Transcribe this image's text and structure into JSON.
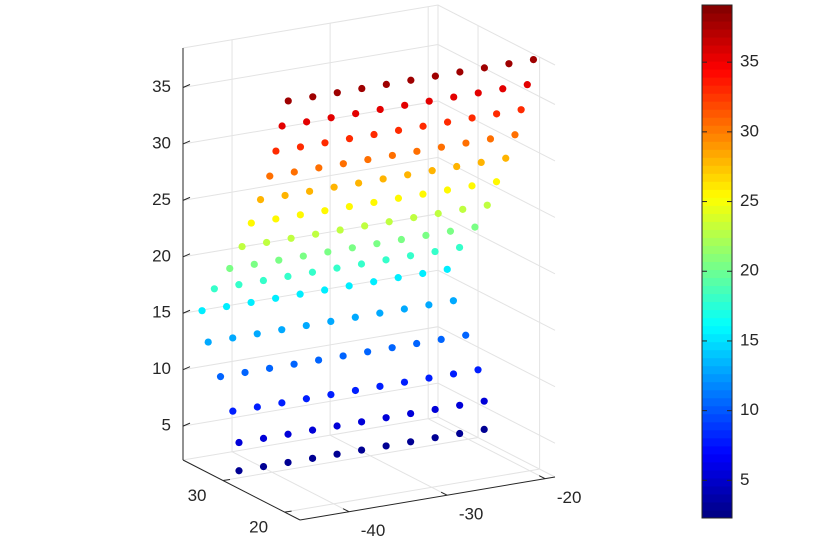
{
  "chart_data": {
    "type": "scatter3d",
    "colormap": "jet",
    "grid": true,
    "xlim": [
      -45,
      -19
    ],
    "ylim": [
      17.5,
      36.5
    ],
    "zlim": [
      2,
      38.5
    ],
    "xticks": [
      -40,
      -30,
      -20
    ],
    "yticks": [
      20,
      30
    ],
    "zticks": [
      5,
      10,
      15,
      20,
      25,
      30,
      35
    ],
    "clim": [
      2.3,
      39.1
    ],
    "cticks": [
      5,
      10,
      15,
      20,
      25,
      30,
      35
    ],
    "x": [
      -44,
      -41.5,
      -39,
      -36.5,
      -34,
      -31.5,
      -29,
      -26.5,
      -24,
      -21.5,
      -19,
      -44,
      -41.5,
      -39,
      -36.5,
      -34,
      -31.5,
      -29,
      -26.5,
      -24,
      -21.5,
      -19,
      -44,
      -41.5,
      -39,
      -36.5,
      -34,
      -31.5,
      -29,
      -26.5,
      -24,
      -21.5,
      -19,
      -44,
      -41.5,
      -39,
      -36.5,
      -34,
      -31.5,
      -29,
      -26.5,
      -24,
      -21.5,
      -19,
      -44,
      -41.5,
      -39,
      -36.5,
      -34,
      -31.5,
      -29,
      -26.5,
      -24,
      -21.5,
      -19,
      -44,
      -41.5,
      -39,
      -36.5,
      -34,
      -31.5,
      -29,
      -26.5,
      -24,
      -21.5,
      -19,
      -44,
      -41.5,
      -39,
      -36.5,
      -34,
      -31.5,
      -29,
      -26.5,
      -24,
      -21.5,
      -19,
      -44,
      -41.5,
      -39,
      -36.5,
      -34,
      -31.5,
      -29,
      -26.5,
      -24,
      -21.5,
      -19,
      -44,
      -41.5,
      -39,
      -36.5,
      -34,
      -31.5,
      -29,
      -26.5,
      -24,
      -21.5,
      -19,
      -44,
      -41.5,
      -39,
      -36.5,
      -34,
      -31.5,
      -29,
      -26.5,
      -24,
      -21.5,
      -19,
      -44,
      -41.5,
      -39,
      -36.5,
      -34,
      -31.5,
      -29,
      -26.5,
      -24,
      -21.5,
      -19,
      -44,
      -41.5,
      -39,
      -36.5,
      -34,
      -31.5,
      -29,
      -26.5,
      -24,
      -21.5,
      -19,
      -44,
      -41.5,
      -39,
      -36.5,
      -34,
      -31.5,
      -29,
      -26.5,
      -24,
      -21.5,
      -19,
      -44,
      -41.5,
      -39,
      -36.5,
      -34,
      -31.5,
      -29,
      -26.5,
      -24,
      -21.5,
      -19,
      -44,
      -41.5,
      -39,
      -36.5,
      -34,
      -31.5,
      -29,
      -26.5,
      -24,
      -21.5,
      -19
    ],
    "y": [
      29,
      29,
      29,
      29,
      29,
      29,
      29,
      29,
      29,
      29,
      29,
      29,
      29,
      29,
      29,
      29,
      29,
      29,
      29,
      29,
      29,
      29,
      30,
      30,
      30,
      30,
      30,
      30,
      30,
      30,
      30,
      30,
      30,
      32,
      32,
      32,
      32,
      32,
      32,
      32,
      32,
      32,
      32,
      32,
      34,
      34,
      34,
      34,
      34,
      34,
      34,
      34,
      34,
      34,
      34,
      35,
      35,
      35,
      35,
      35,
      35,
      35,
      35,
      35,
      35,
      35,
      33,
      33,
      33,
      33,
      33,
      33,
      33,
      33,
      33,
      33,
      33,
      30.5,
      30.5,
      30.5,
      30.5,
      30.5,
      30.5,
      30.5,
      30.5,
      30.5,
      30.5,
      30.5,
      28.5,
      28.5,
      28.5,
      28.5,
      28.5,
      28.5,
      28.5,
      28.5,
      28.5,
      28.5,
      28.5,
      27,
      27,
      27,
      27,
      27,
      27,
      27,
      27,
      27,
      27,
      27,
      25.5,
      25.5,
      25.5,
      25.5,
      25.5,
      25.5,
      25.5,
      25.5,
      25.5,
      25.5,
      25.5,
      24,
      24,
      24,
      24,
      24,
      24,
      24,
      24,
      24,
      24,
      24,
      23,
      23,
      23,
      23,
      23,
      23,
      23,
      23,
      23,
      23,
      23,
      22,
      22,
      22,
      22,
      22,
      22,
      22,
      22,
      22,
      22,
      22,
      21,
      21,
      21,
      21,
      21,
      21,
      21,
      21,
      21,
      21,
      21
    ],
    "z": [
      3,
      3,
      3,
      3,
      3,
      3,
      3,
      3,
      3,
      3,
      3,
      5.5,
      5.5,
      5.5,
      5.5,
      5.5,
      5.5,
      5.5,
      5.5,
      5.5,
      5.5,
      5.5,
      8,
      8,
      8,
      8,
      8,
      8,
      8,
      8,
      8,
      8,
      8,
      10.5,
      10.5,
      10.5,
      10.5,
      10.5,
      10.5,
      10.5,
      10.5,
      10.5,
      10.5,
      10.5,
      13,
      13,
      13,
      13,
      13,
      13,
      13,
      13,
      13,
      13,
      13,
      15.5,
      15.5,
      15.5,
      15.5,
      15.5,
      15.5,
      15.5,
      15.5,
      15.5,
      15.5,
      15.5,
      18,
      18,
      18,
      18,
      18,
      18,
      18,
      18,
      18,
      18,
      18,
      20.5,
      20.5,
      20.5,
      20.5,
      20.5,
      20.5,
      20.5,
      20.5,
      20.5,
      20.5,
      20.5,
      23,
      23,
      23,
      23,
      23,
      23,
      23,
      23,
      23,
      23,
      23,
      25.5,
      25.5,
      25.5,
      25.5,
      25.5,
      25.5,
      25.5,
      25.5,
      25.5,
      25.5,
      25.5,
      28,
      28,
      28,
      28,
      28,
      28,
      28,
      28,
      28,
      28,
      28,
      30.5,
      30.5,
      30.5,
      30.5,
      30.5,
      30.5,
      30.5,
      30.5,
      30.5,
      30.5,
      30.5,
      33,
      33,
      33,
      33,
      33,
      33,
      33,
      33,
      33,
      33,
      33,
      35.5,
      35.5,
      35.5,
      35.5,
      35.5,
      35.5,
      35.5,
      35.5,
      35.5,
      35.5,
      35.5,
      38,
      38,
      38,
      38,
      38,
      38,
      38,
      38,
      38,
      38,
      38
    ]
  }
}
